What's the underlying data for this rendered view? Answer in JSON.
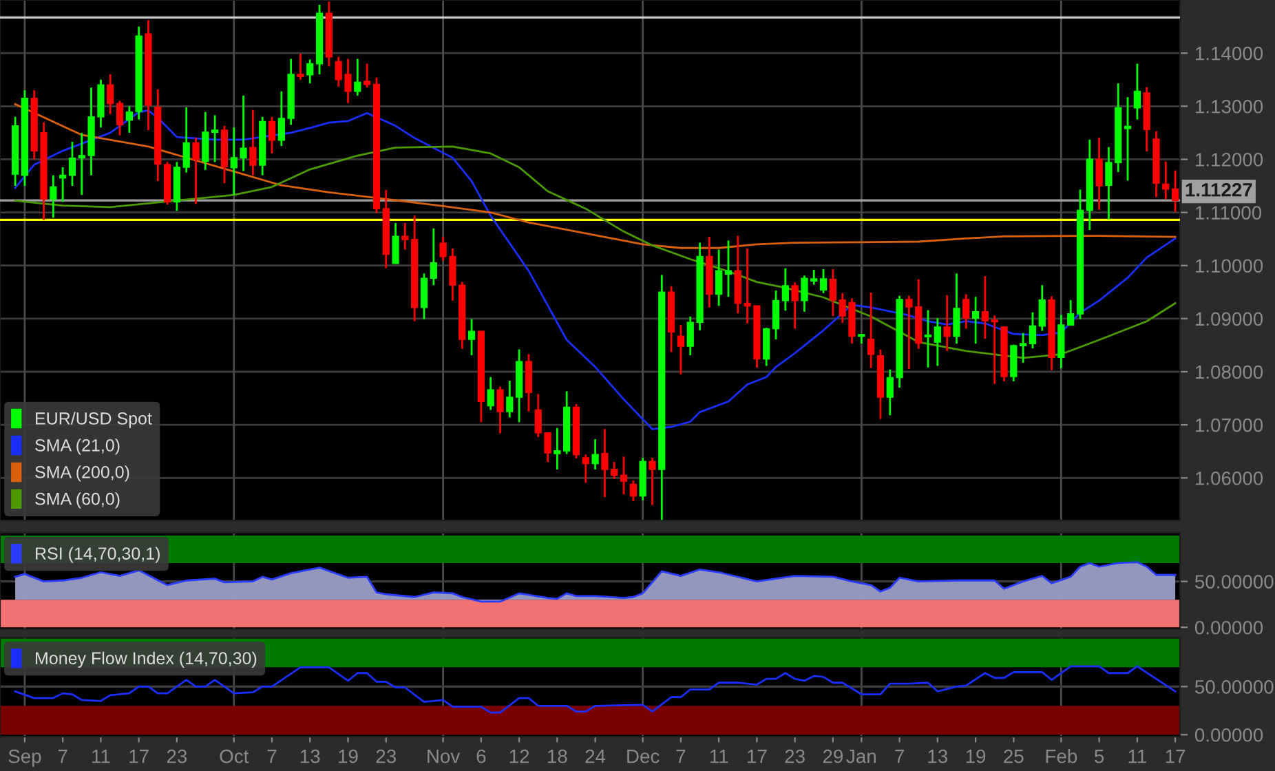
{
  "chart_data": [
    {
      "type": "candlestick",
      "categories": [
        null,
        "Sep",
        null,
        null,
        null,
        "7",
        null,
        null,
        null,
        "11",
        null,
        null,
        null,
        "17",
        null,
        null,
        null,
        "23",
        null,
        null,
        null,
        null,
        null,
        "Oct",
        null,
        null,
        null,
        "7",
        null,
        null,
        null,
        "13",
        null,
        null,
        null,
        "19",
        null,
        null,
        null,
        "23",
        null,
        null,
        null,
        null,
        null,
        "Nov",
        null,
        null,
        null,
        "6",
        null,
        null,
        null,
        "12",
        null,
        null,
        null,
        "18",
        null,
        null,
        null,
        "24",
        null,
        null,
        null,
        null,
        "Dec",
        null,
        null,
        null,
        "7",
        null,
        null,
        null,
        "11",
        null,
        null,
        null,
        "17",
        null,
        null,
        null,
        "23",
        null,
        null,
        null,
        "29",
        null,
        null,
        "Jan",
        null,
        null,
        null,
        "7",
        null,
        null,
        null,
        "13",
        null,
        null,
        null,
        "19",
        null,
        null,
        null,
        "25",
        null,
        null,
        null,
        null,
        "Feb",
        null,
        null,
        null,
        "5",
        null,
        null,
        null,
        "11",
        null,
        null,
        null,
        "17"
      ],
      "series": [
        {
          "name": "EUR/USD Spot",
          "colors": [
            "#00ff00",
            "#00ff00",
            "#ff0000",
            "#ff0000",
            "#00ff00",
            "#00ff00",
            "#00ff00",
            "#00ff00",
            "#00ff00",
            "#00ff00",
            "#ff0000",
            "#ff0000",
            "#00ff00",
            "#00ff00",
            "#ff0000",
            "#ff0000",
            "#ff0000",
            "#00ff00",
            "#00ff00",
            "#ff0000",
            "#00ff00",
            "#00ff00",
            "#ff0000",
            "#00ff00",
            "#00ff00",
            "#ff0000",
            "#00ff00",
            "#ff0000",
            "#00ff00",
            "#00ff00",
            "#ff0000",
            "#00ff00",
            "#00ff00",
            "#ff0000",
            "#ff0000",
            "#ff0000",
            "#00ff00",
            "#ff0000",
            "#ff0000",
            "#ff0000",
            "#00ff00",
            "#ff0000",
            "#ff0000",
            "#00ff00",
            "#00ff00",
            "#ff0000",
            "#ff0000",
            "#ff0000",
            "#00ff00",
            "#ff0000",
            "#00ff00",
            "#ff0000",
            "#00ff00",
            "#00ff00",
            "#ff0000",
            "#ff0000",
            "#ff0000",
            "#00ff00",
            "#00ff00",
            "#ff0000",
            "#ff0000",
            "#00ff00",
            "#ff0000",
            "#ff0000",
            "#ff0000",
            "#ff0000",
            "#00ff00",
            "#ff0000",
            "#00ff00",
            "#ff0000",
            "#ff0000",
            "#00ff00",
            "#00ff00",
            "#ff0000",
            "#00ff00",
            "#00ff00",
            "#ff0000",
            "#ff0000",
            "#ff0000",
            "#00ff00",
            "#00ff00",
            "#00ff00",
            "#ff0000",
            "#00ff00",
            "#00ff00",
            "#00ff00",
            "#ff0000",
            "#ff0000",
            "#ff0000",
            "#00ff00",
            "#ff0000",
            "#ff0000",
            "#00ff00",
            "#00ff00",
            "#ff0000",
            "#ff0000",
            "#00ff00",
            "#00ff00",
            "#ff0000",
            "#00ff00",
            "#ff0000",
            "#00ff00",
            "#ff0000",
            "#ff0000",
            "#ff0000",
            "#00ff00",
            "#00ff00",
            "#00ff00",
            "#00ff00",
            "#ff0000",
            "#00ff00",
            "#00ff00",
            "#00ff00",
            "#00ff00",
            "#ff0000",
            "#00ff00",
            "#00ff00",
            "#00ff00",
            "#00ff00",
            "#ff0000",
            "#ff0000",
            "#ff0000",
            "#ff0000"
          ],
          "ohlc": [
            [
              1.1172,
              1.128,
              1.115,
              1.1263
            ],
            [
              1.117,
              1.133,
              1.115,
              1.1315
            ],
            [
              1.1315,
              1.133,
              1.12,
              1.1216
            ],
            [
              1.125,
              1.127,
              1.1086,
              1.1125
            ],
            [
              1.1125,
              1.117,
              1.109,
              1.1148
            ],
            [
              1.1165,
              1.1185,
              1.112,
              1.117
            ],
            [
              1.117,
              1.1233,
              1.115,
              1.1202
            ],
            [
              1.1203,
              1.125,
              1.1133,
              1.1207
            ],
            [
              1.1207,
              1.1335,
              1.117,
              1.128
            ],
            [
              1.128,
              1.135,
              1.126,
              1.134
            ],
            [
              1.134,
              1.136,
              1.1285,
              1.1305
            ],
            [
              1.1305,
              1.131,
              1.1245,
              1.1265
            ],
            [
              1.1274,
              1.13,
              1.125,
              1.1289
            ],
            [
              1.129,
              1.145,
              1.1275,
              1.1432
            ],
            [
              1.1436,
              1.1462,
              1.1255,
              1.1302
            ],
            [
              1.1298,
              1.1332,
              1.1159,
              1.1191
            ],
            [
              1.119,
              1.1195,
              1.1115,
              1.112
            ],
            [
              1.112,
              1.1195,
              1.1103,
              1.1185
            ],
            [
              1.1185,
              1.1298,
              1.1175,
              1.1231
            ],
            [
              1.1231,
              1.1241,
              1.1116,
              1.12
            ],
            [
              1.1196,
              1.1289,
              1.118,
              1.1251
            ],
            [
              1.1251,
              1.1283,
              1.1195,
              1.1255
            ],
            [
              1.1255,
              1.1263,
              1.1155,
              1.1186
            ],
            [
              1.1184,
              1.126,
              1.1133,
              1.1203
            ],
            [
              1.1203,
              1.132,
              1.1178,
              1.1221
            ],
            [
              1.1222,
              1.1293,
              1.117,
              1.1189
            ],
            [
              1.1189,
              1.128,
              1.117,
              1.1271
            ],
            [
              1.1271,
              1.128,
              1.1211,
              1.1236
            ],
            [
              1.1236,
              1.1328,
              1.1225,
              1.1277
            ],
            [
              1.1277,
              1.1389,
              1.1265,
              1.136
            ],
            [
              1.136,
              1.1399,
              1.135,
              1.1356
            ],
            [
              1.1359,
              1.1388,
              1.1343,
              1.138
            ],
            [
              1.138,
              1.1491,
              1.136,
              1.1475
            ],
            [
              1.1475,
              1.1497,
              1.1375,
              1.1393
            ],
            [
              1.1384,
              1.1393,
              1.1337,
              1.135
            ],
            [
              1.136,
              1.1389,
              1.1306,
              1.1328
            ],
            [
              1.1328,
              1.1389,
              1.132,
              1.1345
            ],
            [
              1.1347,
              1.138,
              1.1335,
              1.1341
            ],
            [
              1.1341,
              1.1354,
              1.1099,
              1.1107
            ],
            [
              1.1107,
              1.1142,
              1.0995,
              1.1021
            ],
            [
              1.1004,
              1.108,
              1.1003,
              1.1055
            ],
            [
              1.1055,
              1.108,
              1.103,
              1.1049
            ],
            [
              1.1049,
              1.1094,
              1.0895,
              1.0921
            ],
            [
              1.0921,
              1.0985,
              1.0899,
              1.0976
            ],
            [
              1.0976,
              1.107,
              1.0963,
              1.1005
            ],
            [
              1.1042,
              1.1054,
              1.1009,
              1.1017
            ],
            [
              1.1017,
              1.1032,
              1.0934,
              1.0963
            ],
            [
              1.0963,
              1.0969,
              1.0843,
              1.0861
            ],
            [
              1.0861,
              1.0899,
              1.0831,
              1.0876
            ],
            [
              1.0876,
              1.0877,
              1.0705,
              1.0744
            ],
            [
              1.0736,
              1.079,
              1.0728,
              1.0766
            ],
            [
              1.0766,
              1.0772,
              1.0684,
              1.0725
            ],
            [
              1.0725,
              1.0783,
              1.0714,
              1.0752
            ],
            [
              1.0752,
              1.0842,
              1.0705,
              1.0819
            ],
            [
              1.0819,
              1.0833,
              1.0725,
              1.0761
            ],
            [
              1.0728,
              1.0758,
              1.0677,
              1.0685
            ],
            [
              1.0685,
              1.0685,
              1.063,
              1.0647
            ],
            [
              1.0646,
              1.0694,
              1.0616,
              1.0651
            ],
            [
              1.0651,
              1.0763,
              1.0645,
              1.0733
            ],
            [
              1.0733,
              1.0739,
              1.0637,
              1.0644
            ],
            [
              1.0638,
              1.0644,
              1.0591,
              1.0627
            ],
            [
              1.0627,
              1.0673,
              1.0616,
              1.0644
            ],
            [
              1.0646,
              1.0692,
              1.0564,
              1.0616
            ],
            [
              1.0616,
              1.063,
              1.0598,
              1.0605
            ],
            [
              1.0605,
              1.064,
              1.0569,
              1.0594
            ],
            [
              1.0588,
              1.0595,
              1.0556,
              1.0566
            ],
            [
              1.0566,
              1.0638,
              1.0558,
              1.0631
            ],
            [
              1.0631,
              1.0638,
              1.0549,
              1.0616
            ],
            [
              1.0616,
              1.0982,
              1.0521,
              1.095
            ],
            [
              1.095,
              1.0961,
              1.0837,
              1.0875
            ],
            [
              1.0867,
              1.0888,
              1.0795,
              1.0848
            ],
            [
              1.0848,
              1.0904,
              1.0831,
              1.0893
            ],
            [
              1.0893,
              1.1043,
              1.0878,
              1.1017
            ],
            [
              1.1017,
              1.1054,
              1.0921,
              1.0946
            ],
            [
              1.0946,
              1.103,
              1.0924,
              1.099
            ],
            [
              1.0984,
              1.1047,
              1.0941,
              1.099
            ],
            [
              1.099,
              1.1056,
              1.091,
              1.0929
            ],
            [
              1.0929,
              1.1032,
              1.0891,
              1.0924
            ],
            [
              1.0924,
              1.0924,
              1.0808,
              1.0824
            ],
            [
              1.0824,
              1.0883,
              1.0811,
              1.0881
            ],
            [
              1.0881,
              1.0953,
              1.0861,
              1.0934
            ],
            [
              1.0934,
              1.0995,
              1.0915,
              1.0962
            ],
            [
              1.0962,
              1.0968,
              1.0881,
              1.0934
            ],
            [
              1.0934,
              1.0981,
              1.0913,
              1.0976
            ],
            [
              1.0971,
              1.0992,
              1.0964,
              1.0975
            ],
            [
              1.0954,
              1.0993,
              1.0948,
              1.0975
            ],
            [
              1.0974,
              1.0993,
              1.0905,
              1.0935
            ],
            [
              1.0935,
              1.0948,
              1.0892,
              1.0905
            ],
            [
              1.093,
              1.0938,
              1.0853,
              1.0867
            ],
            [
              1.0867,
              1.0871,
              1.0853,
              1.087
            ],
            [
              1.0861,
              1.0949,
              1.0807,
              1.0833
            ],
            [
              1.083,
              1.0842,
              1.0711,
              1.0752
            ],
            [
              1.0752,
              1.0804,
              1.0718,
              1.0789
            ],
            [
              1.0789,
              1.0943,
              1.077,
              1.0936
            ],
            [
              1.0936,
              1.0943,
              1.0805,
              1.0922
            ],
            [
              1.0922,
              1.0974,
              1.0843,
              1.0854
            ],
            [
              1.0866,
              1.0916,
              1.0808,
              1.0869
            ],
            [
              1.0856,
              1.0901,
              1.0811,
              1.0884
            ],
            [
              1.0884,
              1.0944,
              1.0839,
              1.0867
            ],
            [
              1.0867,
              1.0985,
              1.0853,
              1.0919
            ],
            [
              1.0936,
              1.0946,
              1.0881,
              1.0901
            ],
            [
              1.0901,
              1.0941,
              1.0853,
              1.0913
            ],
            [
              1.0913,
              1.098,
              1.0862,
              1.0896
            ],
            [
              1.0897,
              1.0906,
              1.0777,
              1.0894
            ],
            [
              1.0884,
              1.0885,
              1.0782,
              1.0791
            ],
            [
              1.0791,
              1.0851,
              1.0782,
              1.0849
            ],
            [
              1.0849,
              1.0873,
              1.0817,
              1.0853
            ],
            [
              1.0853,
              1.0912,
              1.0844,
              1.0886
            ],
            [
              1.0886,
              1.0963,
              1.0877,
              1.0935
            ],
            [
              1.0935,
              1.0942,
              1.0803,
              1.0827
            ],
            [
              1.0827,
              1.0907,
              1.0807,
              1.0888
            ],
            [
              1.0888,
              1.0935,
              1.0888,
              1.0909
            ],
            [
              1.0909,
              1.1143,
              1.0899,
              1.1104
            ],
            [
              1.1104,
              1.1237,
              1.1067,
              1.12
            ],
            [
              1.12,
              1.1241,
              1.1105,
              1.115
            ],
            [
              1.1151,
              1.1223,
              1.1087,
              1.1194
            ],
            [
              1.1194,
              1.1343,
              1.1176,
              1.1297
            ],
            [
              1.1258,
              1.1317,
              1.116,
              1.1262
            ],
            [
              1.1297,
              1.138,
              1.1275,
              1.1328
            ],
            [
              1.1325,
              1.1336,
              1.1215,
              1.1256
            ],
            [
              1.1238,
              1.1253,
              1.1129,
              1.1155
            ],
            [
              1.1153,
              1.1196,
              1.1125,
              1.1144
            ],
            [
              1.1144,
              1.1179,
              1.1101,
              1.11227
            ]
          ]
        },
        {
          "name": "SMA (21,0)",
          "type": "line",
          "color": "#1a2eff",
          "values": [
            1.1146,
            null,
            1.119,
            null,
            null,
            1.1216,
            null,
            null,
            null,
            null,
            1.125,
            null,
            null,
            1.1289,
            1.1292,
            1.1278,
            null,
            1.1242,
            null,
            null,
            null,
            1.1237,
            null,
            null,
            1.1237,
            null,
            null,
            null,
            null,
            1.125,
            null,
            1.1259,
            null,
            1.1269,
            null,
            1.1272,
            null,
            1.1287,
            null,
            null,
            1.1263,
            null,
            1.124,
            null,
            null,
            null,
            1.1203,
            null,
            1.1159,
            null,
            1.1094,
            null,
            null,
            null,
            1.099,
            null,
            null,
            null,
            1.086,
            null,
            null,
            1.0809,
            null,
            null,
            1.0748,
            null,
            null,
            1.0692,
            null,
            1.0696,
            null,
            1.0706,
            1.0724,
            null,
            null,
            1.0744,
            null,
            1.0776,
            null,
            1.079,
            1.0809,
            null,
            1.0835,
            null,
            null,
            1.0878,
            null,
            null,
            1.0926,
            null,
            1.0921,
            null,
            null,
            null,
            1.0906,
            null,
            1.0895,
            null,
            1.0889,
            null,
            1.0895,
            null,
            1.0891,
            null,
            null,
            1.0871,
            null,
            null,
            1.0869,
            null,
            1.0874,
            null,
            1.0911,
            null,
            1.0934,
            null,
            null,
            1.0977,
            null,
            1.1015,
            null,
            null,
            1.1051
          ]
        },
        {
          "name": "SMA (200,0)",
          "type": "line",
          "color": "#d9600c",
          "values": [
            1.1304,
            null,
            null,
            null,
            null,
            null,
            null,
            1.1246,
            null,
            null,
            null,
            null,
            null,
            null,
            1.1224,
            null,
            null,
            null,
            null,
            null,
            null,
            null,
            null,
            1.1177,
            null,
            null,
            null,
            null,
            1.1151,
            null,
            null,
            null,
            null,
            1.1138,
            null,
            null,
            null,
            null,
            null,
            null,
            1.1123,
            null,
            null,
            null,
            null,
            1.1112,
            null,
            null,
            null,
            null,
            1.11,
            null,
            null,
            null,
            1.1081,
            null,
            null,
            null,
            null,
            1.1064,
            null,
            null,
            null,
            null,
            null,
            null,
            1.104,
            null,
            null,
            null,
            1.1033,
            null,
            null,
            null,
            1.1033,
            null,
            null,
            null,
            1.104,
            null,
            null,
            null,
            1.1043,
            null,
            null,
            null,
            null,
            null,
            null,
            null,
            null,
            null,
            null,
            null,
            null,
            1.1045,
            null,
            null,
            null,
            null,
            1.1051,
            null,
            null,
            null,
            1.1055,
            null,
            null,
            null,
            null,
            null,
            null,
            null,
            null,
            null,
            1.1056,
            null,
            null,
            null,
            null,
            null,
            null,
            null,
            1.1054
          ]
        },
        {
          "name": "SMA (60,0)",
          "type": "line",
          "color": "#4c9a00",
          "values": [
            1.1122,
            null,
            null,
            null,
            null,
            1.1113,
            null,
            null,
            null,
            null,
            1.111,
            null,
            null,
            null,
            1.1117,
            null,
            null,
            null,
            null,
            1.1126,
            null,
            null,
            null,
            1.1133,
            null,
            null,
            null,
            1.1148,
            null,
            null,
            null,
            1.1181,
            null,
            null,
            null,
            null,
            1.1207,
            null,
            null,
            null,
            1.1222,
            null,
            null,
            null,
            null,
            null,
            1.1224,
            null,
            null,
            null,
            1.1211,
            null,
            null,
            1.1185,
            null,
            null,
            1.114,
            null,
            null,
            null,
            1.1107,
            null,
            null,
            null,
            1.1064,
            null,
            null,
            1.1038,
            null,
            null,
            null,
            1.1012,
            null,
            null,
            null,
            1.0989,
            null,
            null,
            1.0969,
            null,
            null,
            1.0958,
            null,
            null,
            null,
            1.094,
            null,
            null,
            null,
            null,
            1.0904,
            null,
            null,
            null,
            null,
            1.0856,
            null,
            null,
            null,
            null,
            1.0839,
            null,
            null,
            null,
            null,
            null,
            1.0826,
            null,
            null,
            null,
            1.0833,
            null,
            null,
            null,
            1.086,
            null,
            null,
            null,
            null,
            1.0895,
            null,
            null,
            1.0929
          ]
        }
      ],
      "ylim": [
        1.052,
        1.15
      ],
      "yticks": [
        {
          "value": 1.06,
          "label": "1.06000"
        },
        {
          "value": 1.07,
          "label": "1.07000"
        },
        {
          "value": 1.08,
          "label": "1.08000"
        },
        {
          "value": 1.09,
          "label": "1.09000"
        },
        {
          "value": 1.1,
          "label": "1.10000"
        },
        {
          "value": 1.11,
          "label": "1.11000"
        },
        {
          "value": 1.12,
          "label": "1.12000"
        },
        {
          "value": 1.13,
          "label": "1.13000"
        },
        {
          "value": 1.14,
          "label": "1.14000"
        }
      ],
      "ref_lines": [
        {
          "axis": "y",
          "value": 1.1086,
          "color": "#ffff00"
        },
        {
          "axis": "y",
          "value": 1.1467,
          "color": "#c8c8c8"
        },
        {
          "axis": "y",
          "value": 1.11227,
          "label": "1.11227",
          "color": "#a0a0a0"
        },
        {
          "axis": "x",
          "value": "Sep",
          "color": "#4a4a4a"
        },
        {
          "axis": "x",
          "value": "Oct",
          "color": "#4a4a4a"
        },
        {
          "axis": "x",
          "value": "Nov",
          "color": "#4a4a4a"
        },
        {
          "axis": "x",
          "value": "Dec",
          "color": "#4a4a4a"
        },
        {
          "axis": "x",
          "value": "Jan",
          "color": "#4a4a4a"
        },
        {
          "axis": "x",
          "value": "Feb",
          "color": "#4a4a4a"
        }
      ],
      "grid": "y",
      "legend": "bottom left",
      "tick_labels": "y"
    },
    {
      "type": "area",
      "categories": [
        null,
        "Sep",
        null,
        null,
        null,
        "7",
        null,
        null,
        null,
        "11",
        null,
        null,
        null,
        "17",
        null,
        null,
        null,
        "23",
        null,
        null,
        null,
        null,
        null,
        "Oct",
        null,
        null,
        null,
        "7",
        null,
        null,
        null,
        "13",
        null,
        null,
        null,
        "19",
        null,
        null,
        null,
        "23",
        null,
        null,
        null,
        null,
        null,
        "Nov",
        null,
        null,
        null,
        "6",
        null,
        null,
        null,
        "12",
        null,
        null,
        null,
        "18",
        null,
        null,
        null,
        "24",
        null,
        null,
        null,
        null,
        "Dec",
        null,
        null,
        null,
        "7",
        null,
        null,
        null,
        "11",
        null,
        null,
        null,
        "17",
        null,
        null,
        null,
        "23",
        null,
        null,
        null,
        "29",
        null,
        null,
        "Jan",
        null,
        null,
        null,
        "7",
        null,
        null,
        null,
        "13",
        null,
        null,
        null,
        "19",
        null,
        null,
        null,
        "25",
        null,
        null,
        null,
        null,
        "Feb",
        null,
        null,
        null,
        "5",
        null,
        null,
        null,
        "11",
        null,
        null,
        null,
        "17"
      ],
      "series": [
        {
          "name": "RSI (14,70,30,1)",
          "color": "#2a3cff",
          "values": [
            55,
            58,
            null,
            50,
            null,
            51,
            null,
            54,
            null,
            60,
            null,
            56,
            null,
            62,
            null,
            null,
            46,
            null,
            51,
            null,
            null,
            53,
            49,
            null,
            null,
            50,
            55,
            52,
            null,
            59,
            null,
            null,
            65,
            null,
            null,
            54,
            null,
            55,
            38,
            36,
            null,
            null,
            33,
            null,
            38,
            null,
            37,
            33,
            null,
            28,
            null,
            28,
            null,
            37,
            null,
            null,
            32,
            31,
            37,
            34,
            null,
            34,
            null,
            null,
            32,
            33,
            37,
            null,
            61,
            null,
            56,
            null,
            63,
            null,
            60,
            null,
            null,
            null,
            50,
            null,
            null,
            null,
            56,
            null,
            null,
            null,
            55,
            null,
            50,
            null,
            46,
            39,
            43,
            54,
            null,
            50,
            null,
            null,
            null,
            51,
            null,
            null,
            null,
            51,
            42,
            null,
            50,
            null,
            56,
            48,
            null,
            55,
            66,
            70,
            66,
            null,
            70,
            null,
            71,
            66,
            57,
            null,
            57
          ]
        }
      ],
      "ylim": [
        -2,
        103
      ],
      "yticks": [
        {
          "value": 0,
          "label": "0.00000"
        },
        {
          "value": 50,
          "label": "50.00000"
        }
      ],
      "bands": [
        {
          "axis": "y",
          "from": 70,
          "to": 100,
          "color": "#007a00"
        },
        {
          "axis": "y",
          "from": 0,
          "to": 30,
          "color": "#f07272"
        }
      ],
      "ref_lines": [
        {
          "axis": "y",
          "value": 50,
          "color": "#3c3c3c"
        },
        {
          "axis": "x",
          "value": "Sep",
          "color": "#4a4a4a"
        },
        {
          "axis": "x",
          "value": "Oct",
          "color": "#4a4a4a"
        },
        {
          "axis": "x",
          "value": "Nov",
          "color": "#4a4a4a"
        },
        {
          "axis": "x",
          "value": "Dec",
          "color": "#4a4a4a"
        },
        {
          "axis": "x",
          "value": "Jan",
          "color": "#4a4a4a"
        },
        {
          "axis": "x",
          "value": "Feb",
          "color": "#4a4a4a"
        }
      ],
      "legend": "top left",
      "tick_labels": "y"
    },
    {
      "type": "line",
      "categories": [
        null,
        "Sep",
        null,
        null,
        null,
        "7",
        null,
        null,
        null,
        "11",
        null,
        null,
        null,
        "17",
        null,
        null,
        null,
        "23",
        null,
        null,
        null,
        null,
        null,
        "Oct",
        null,
        null,
        null,
        "7",
        null,
        null,
        null,
        "13",
        null,
        null,
        null,
        "19",
        null,
        null,
        null,
        "23",
        null,
        null,
        null,
        null,
        null,
        "Nov",
        null,
        null,
        null,
        "6",
        null,
        null,
        null,
        "12",
        null,
        null,
        null,
        "18",
        null,
        null,
        null,
        "24",
        null,
        null,
        null,
        null,
        "Dec",
        null,
        null,
        null,
        "7",
        null,
        null,
        null,
        "11",
        null,
        null,
        null,
        "17",
        null,
        null,
        null,
        "23",
        null,
        null,
        null,
        "29",
        null,
        null,
        "Jan",
        null,
        null,
        null,
        "7",
        null,
        null,
        null,
        "13",
        null,
        null,
        null,
        "19",
        null,
        null,
        null,
        "25",
        null,
        null,
        null,
        null,
        "Feb",
        null,
        null,
        null,
        "5",
        null,
        null,
        null,
        "11",
        null,
        null,
        null,
        "17"
      ],
      "series": [
        {
          "name": "Money Flow Index (14,70,30)",
          "color": "#1a2eff",
          "values": [
            45,
            null,
            38,
            null,
            38,
            43,
            42,
            36,
            null,
            35,
            41,
            null,
            43,
            50,
            50,
            43,
            43,
            null,
            57,
            50,
            50,
            57,
            null,
            43,
            null,
            44,
            50,
            50,
            null,
            null,
            70,
            null,
            null,
            70,
            null,
            56,
            64,
            64,
            55,
            55,
            49,
            49,
            null,
            34,
            null,
            36,
            29,
            null,
            null,
            29,
            23,
            23,
            null,
            38,
            38,
            30,
            null,
            null,
            30,
            24,
            24,
            30,
            null,
            null,
            null,
            null,
            31,
            24,
            null,
            39,
            39,
            47,
            null,
            47,
            54,
            null,
            54,
            null,
            52,
            58,
            58,
            64,
            58,
            56,
            61,
            60,
            54,
            54,
            null,
            42,
            null,
            42,
            53,
            null,
            53,
            null,
            54,
            45,
            null,
            50,
            51,
            null,
            64,
            59,
            59,
            65,
            null,
            null,
            65,
            57,
            null,
            71,
            null,
            null,
            71,
            64,
            null,
            64,
            71,
            null,
            null,
            null,
            45
          ]
        }
      ],
      "ylim": [
        -2,
        101
      ],
      "yticks": [
        {
          "value": 0,
          "label": "0.00000"
        },
        {
          "value": 50,
          "label": "50.00000"
        }
      ],
      "bands": [
        {
          "axis": "y",
          "from": 70,
          "to": 100,
          "color": "#007a00"
        },
        {
          "axis": "y",
          "from": 0,
          "to": 30,
          "color": "#7a0000"
        }
      ],
      "ref_lines": [
        {
          "axis": "y",
          "value": 50,
          "color": "#3c3c3c"
        },
        {
          "axis": "x",
          "value": "Sep",
          "color": "#4a4a4a"
        },
        {
          "axis": "x",
          "value": "Oct",
          "color": "#4a4a4a"
        },
        {
          "axis": "x",
          "value": "Nov",
          "color": "#4a4a4a"
        },
        {
          "axis": "x",
          "value": "Dec",
          "color": "#4a4a4a"
        },
        {
          "axis": "x",
          "value": "Jan",
          "color": "#4a4a4a"
        },
        {
          "axis": "x",
          "value": "Feb",
          "color": "#4a4a4a"
        }
      ],
      "legend": "top left"
    }
  ]
}
